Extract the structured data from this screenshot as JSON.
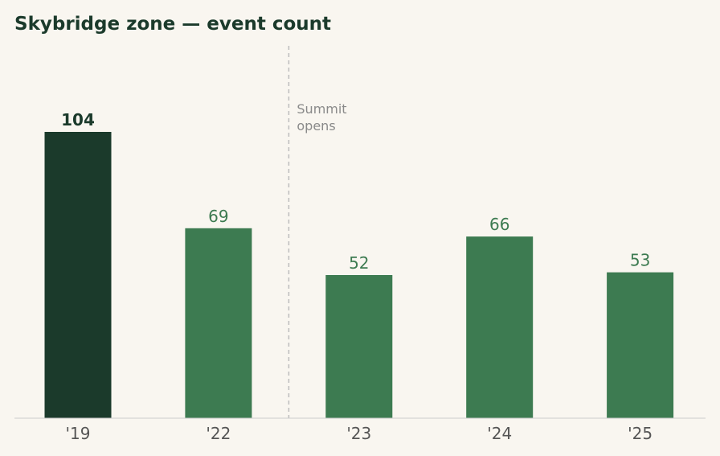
{
  "chart_data": {
    "type": "bar",
    "title": "Skybridge zone — event count",
    "xlabel": "",
    "ylabel": "",
    "categories": [
      "'19",
      "'22",
      "'23",
      "'24",
      "'25"
    ],
    "values": [
      104,
      69,
      52,
      66,
      53
    ],
    "ylim": [
      0,
      137
    ],
    "grid": false,
    "legend": "none",
    "highlight_index": 0,
    "annotation": {
      "lines": [
        "Summit",
        "opens"
      ],
      "between": [
        "'22",
        "'23"
      ]
    },
    "colors": {
      "background": "#f9f6f0",
      "title": "#1b3a2b",
      "highlight_bar": "#1b3a2b",
      "bar": "#3d7b51",
      "highlight_label": "#1b3a2b",
      "label": "#3d7b51",
      "axis": "#cccccc",
      "annotation_line": "#bdbdbd"
    }
  }
}
